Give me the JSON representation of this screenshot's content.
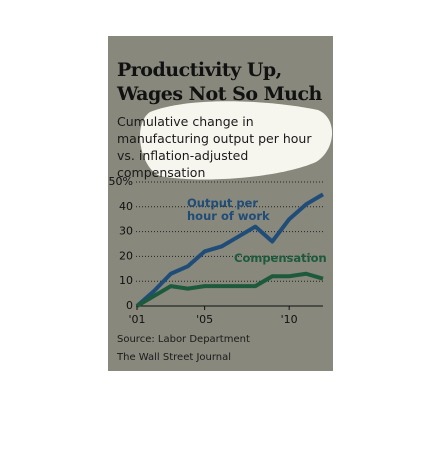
{
  "chart_data": {
    "type": "line",
    "title": "Productivity Up, Wages Not So Much",
    "subtitle": "Cumulative change in manufacturing output per hour vs. inflation-adjusted compensation",
    "x": [
      2001,
      2002,
      2003,
      2004,
      2005,
      2006,
      2007,
      2008,
      2009,
      2010,
      2011,
      2012
    ],
    "series": [
      {
        "name": "Output per hour of work",
        "color": "#1f4d78",
        "values": [
          0,
          6,
          13,
          16,
          22,
          24,
          28,
          32,
          26,
          35,
          41,
          45
        ]
      },
      {
        "name": "Compensation",
        "color": "#1d5a3c",
        "values": [
          0,
          4,
          8,
          7,
          8,
          8,
          8,
          8,
          12,
          12,
          13,
          11
        ]
      }
    ],
    "xlim": [
      2001,
      2012
    ],
    "xticks": [
      {
        "value": 2001,
        "label": "'01"
      },
      {
        "value": 2005,
        "label": "'05"
      },
      {
        "value": 2010,
        "label": "'10"
      }
    ],
    "ylim": [
      0,
      50
    ],
    "yticks": [
      0,
      10,
      20,
      30,
      40,
      {
        "value": 50,
        "label": "50%"
      }
    ],
    "grid": true,
    "source": "Source: Labor Department",
    "credit": "The Wall Street Journal"
  }
}
